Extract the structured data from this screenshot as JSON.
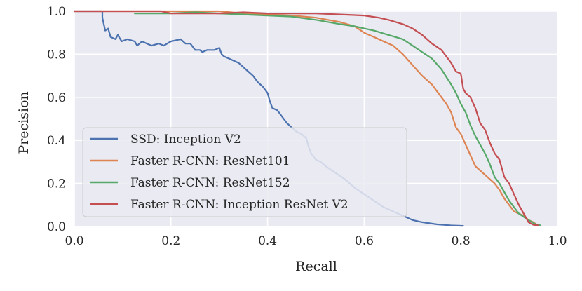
{
  "chart_data": {
    "type": "line",
    "title": "",
    "xlabel": "Recall",
    "ylabel": "Precision",
    "xlim": [
      0.0,
      1.0
    ],
    "ylim": [
      0.0,
      1.0
    ],
    "xticks": [
      "0.0",
      "0.2",
      "0.4",
      "0.6",
      "0.8",
      "1.0"
    ],
    "yticks": [
      "0.0",
      "0.2",
      "0.4",
      "0.6",
      "0.8",
      "1.0"
    ],
    "grid": true,
    "legend_position": "lower-left",
    "series": [
      {
        "name": "SSD: Inception V2",
        "color": "#4c72b0",
        "points": [
          [
            0.0,
            1.0
          ],
          [
            0.058,
            1.0
          ],
          [
            0.058,
            0.97
          ],
          [
            0.062,
            0.93
          ],
          [
            0.064,
            0.91
          ],
          [
            0.07,
            0.92
          ],
          [
            0.075,
            0.88
          ],
          [
            0.085,
            0.87
          ],
          [
            0.09,
            0.89
          ],
          [
            0.098,
            0.86
          ],
          [
            0.11,
            0.87
          ],
          [
            0.125,
            0.86
          ],
          [
            0.13,
            0.84
          ],
          [
            0.14,
            0.86
          ],
          [
            0.15,
            0.85
          ],
          [
            0.16,
            0.84
          ],
          [
            0.175,
            0.85
          ],
          [
            0.185,
            0.84
          ],
          [
            0.2,
            0.86
          ],
          [
            0.22,
            0.87
          ],
          [
            0.23,
            0.85
          ],
          [
            0.24,
            0.85
          ],
          [
            0.25,
            0.82
          ],
          [
            0.26,
            0.82
          ],
          [
            0.265,
            0.81
          ],
          [
            0.275,
            0.82
          ],
          [
            0.29,
            0.82
          ],
          [
            0.3,
            0.83
          ],
          [
            0.305,
            0.8
          ],
          [
            0.31,
            0.79
          ],
          [
            0.32,
            0.78
          ],
          [
            0.33,
            0.77
          ],
          [
            0.34,
            0.76
          ],
          [
            0.35,
            0.74
          ],
          [
            0.36,
            0.72
          ],
          [
            0.37,
            0.7
          ],
          [
            0.38,
            0.67
          ],
          [
            0.39,
            0.65
          ],
          [
            0.4,
            0.62
          ],
          [
            0.405,
            0.58
          ],
          [
            0.41,
            0.55
          ],
          [
            0.42,
            0.54
          ],
          [
            0.43,
            0.51
          ],
          [
            0.44,
            0.48
          ],
          [
            0.45,
            0.46
          ],
          [
            0.46,
            0.44
          ],
          [
            0.47,
            0.43
          ],
          [
            0.48,
            0.41
          ],
          [
            0.485,
            0.37
          ],
          [
            0.49,
            0.34
          ],
          [
            0.5,
            0.31
          ],
          [
            0.51,
            0.3
          ],
          [
            0.52,
            0.28
          ],
          [
            0.54,
            0.25
          ],
          [
            0.56,
            0.22
          ],
          [
            0.58,
            0.18
          ],
          [
            0.6,
            0.15
          ],
          [
            0.62,
            0.12
          ],
          [
            0.64,
            0.09
          ],
          [
            0.66,
            0.07
          ],
          [
            0.68,
            0.05
          ],
          [
            0.7,
            0.03
          ],
          [
            0.72,
            0.02
          ],
          [
            0.75,
            0.01
          ],
          [
            0.78,
            0.005
          ],
          [
            0.805,
            0.003
          ]
        ]
      },
      {
        "name": "Faster R-CNN: ResNet101",
        "color": "#dd8452",
        "points": [
          [
            0.0,
            1.0
          ],
          [
            0.3,
            1.0
          ],
          [
            0.35,
            0.99
          ],
          [
            0.45,
            0.98
          ],
          [
            0.5,
            0.97
          ],
          [
            0.55,
            0.95
          ],
          [
            0.58,
            0.93
          ],
          [
            0.6,
            0.9
          ],
          [
            0.62,
            0.88
          ],
          [
            0.64,
            0.86
          ],
          [
            0.66,
            0.84
          ],
          [
            0.68,
            0.8
          ],
          [
            0.7,
            0.75
          ],
          [
            0.72,
            0.7
          ],
          [
            0.74,
            0.66
          ],
          [
            0.76,
            0.6
          ],
          [
            0.77,
            0.57
          ],
          [
            0.78,
            0.53
          ],
          [
            0.79,
            0.46
          ],
          [
            0.8,
            0.43
          ],
          [
            0.81,
            0.38
          ],
          [
            0.82,
            0.33
          ],
          [
            0.83,
            0.28
          ],
          [
            0.85,
            0.24
          ],
          [
            0.86,
            0.22
          ],
          [
            0.87,
            0.2
          ],
          [
            0.88,
            0.17
          ],
          [
            0.89,
            0.13
          ],
          [
            0.9,
            0.1
          ],
          [
            0.91,
            0.07
          ],
          [
            0.93,
            0.05
          ],
          [
            0.94,
            0.03
          ],
          [
            0.95,
            0.02
          ],
          [
            0.96,
            0.005
          ]
        ]
      },
      {
        "name": "Faster R-CNN: ResNet152",
        "color": "#55a868",
        "points": [
          [
            0.125,
            0.99
          ],
          [
            0.2,
            0.99
          ],
          [
            0.25,
            0.995
          ],
          [
            0.3,
            0.99
          ],
          [
            0.35,
            0.985
          ],
          [
            0.4,
            0.98
          ],
          [
            0.45,
            0.975
          ],
          [
            0.5,
            0.96
          ],
          [
            0.55,
            0.94
          ],
          [
            0.58,
            0.93
          ],
          [
            0.6,
            0.92
          ],
          [
            0.62,
            0.91
          ],
          [
            0.65,
            0.89
          ],
          [
            0.68,
            0.87
          ],
          [
            0.7,
            0.84
          ],
          [
            0.72,
            0.81
          ],
          [
            0.74,
            0.78
          ],
          [
            0.76,
            0.73
          ],
          [
            0.78,
            0.66
          ],
          [
            0.79,
            0.62
          ],
          [
            0.8,
            0.57
          ],
          [
            0.81,
            0.53
          ],
          [
            0.82,
            0.47
          ],
          [
            0.83,
            0.42
          ],
          [
            0.84,
            0.38
          ],
          [
            0.85,
            0.34
          ],
          [
            0.86,
            0.29
          ],
          [
            0.87,
            0.23
          ],
          [
            0.88,
            0.2
          ],
          [
            0.89,
            0.16
          ],
          [
            0.9,
            0.12
          ],
          [
            0.91,
            0.09
          ],
          [
            0.92,
            0.06
          ],
          [
            0.94,
            0.03
          ],
          [
            0.955,
            0.01
          ],
          [
            0.965,
            0.005
          ]
        ]
      },
      {
        "name": "Faster R-CNN: Inception ResNet V2",
        "color": "#c44e52",
        "points": [
          [
            0.0,
            1.0
          ],
          [
            0.18,
            1.0
          ],
          [
            0.2,
            0.99
          ],
          [
            0.3,
            0.99
          ],
          [
            0.35,
            0.995
          ],
          [
            0.4,
            0.99
          ],
          [
            0.45,
            0.99
          ],
          [
            0.5,
            0.99
          ],
          [
            0.55,
            0.985
          ],
          [
            0.6,
            0.98
          ],
          [
            0.63,
            0.97
          ],
          [
            0.65,
            0.96
          ],
          [
            0.68,
            0.94
          ],
          [
            0.7,
            0.92
          ],
          [
            0.72,
            0.89
          ],
          [
            0.74,
            0.85
          ],
          [
            0.76,
            0.82
          ],
          [
            0.77,
            0.79
          ],
          [
            0.78,
            0.76
          ],
          [
            0.79,
            0.72
          ],
          [
            0.8,
            0.71
          ],
          [
            0.805,
            0.64
          ],
          [
            0.81,
            0.62
          ],
          [
            0.82,
            0.6
          ],
          [
            0.83,
            0.55
          ],
          [
            0.84,
            0.48
          ],
          [
            0.85,
            0.45
          ],
          [
            0.86,
            0.39
          ],
          [
            0.87,
            0.34
          ],
          [
            0.88,
            0.31
          ],
          [
            0.89,
            0.23
          ],
          [
            0.9,
            0.2
          ],
          [
            0.91,
            0.15
          ],
          [
            0.92,
            0.1
          ],
          [
            0.93,
            0.06
          ],
          [
            0.94,
            0.02
          ],
          [
            0.95,
            0.008
          ],
          [
            0.96,
            0.005
          ]
        ]
      }
    ]
  }
}
